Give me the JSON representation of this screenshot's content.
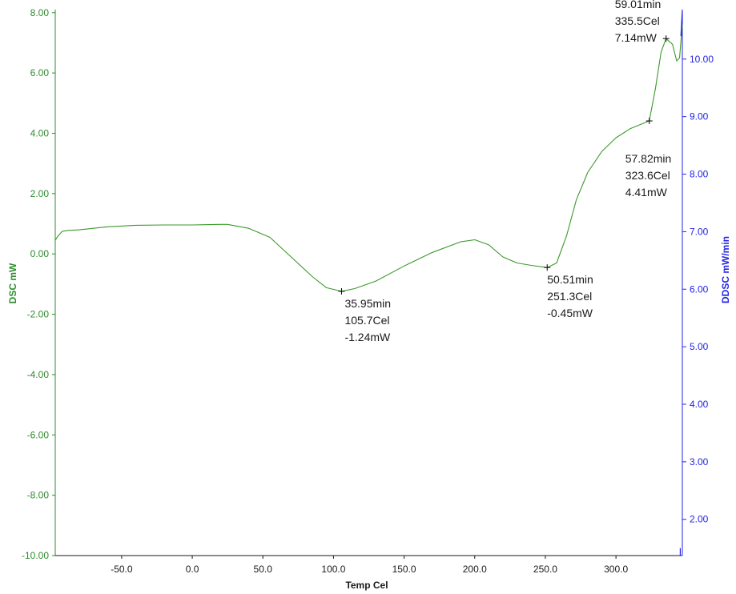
{
  "chart_data": {
    "type": "line",
    "colors": {
      "curve": "#3a9a2a",
      "left_axis": "#2e8b2e",
      "right_axis": "#2323e6",
      "bottom_axis": "#1a1a1a"
    },
    "xlabel": "Temp Cel",
    "ylabel": "DSC mW",
    "y2label": "DDSC mW/min",
    "xlim": [
      -97,
      347
    ],
    "ylim": [
      -10,
      8.1
    ],
    "y2lim": [
      1.37,
      10.86
    ],
    "x_ticks": [
      "-50.0",
      "0.0",
      "50.0",
      "100.0",
      "150.0",
      "200.0",
      "250.0",
      "300.0"
    ],
    "y_ticks": [
      "8.00",
      "6.00",
      "4.00",
      "2.00",
      "0.00",
      "-2.00",
      "-4.00",
      "-6.00",
      "-8.00",
      "-10.00"
    ],
    "y2_ticks": [
      "10.00",
      "9.00",
      "8.00",
      "7.00",
      "6.00",
      "5.00",
      "4.00",
      "3.00",
      "2.00"
    ],
    "grid": false,
    "series": [
      {
        "axis": "left",
        "x": [
          -97,
          -95,
          -92,
          -88,
          -80,
          -60,
          -40,
          -20,
          0,
          20,
          25,
          40,
          55,
          70,
          85,
          95,
          105.7,
          115,
          130,
          150,
          170,
          190,
          200,
          210,
          220,
          230,
          240,
          251.3,
          258,
          265,
          272,
          280,
          290,
          300,
          310,
          323.6,
          328,
          332,
          335.5,
          340,
          343,
          345,
          347
        ],
        "y": [
          0.45,
          0.6,
          0.75,
          0.78,
          0.8,
          0.9,
          0.95,
          0.96,
          0.96,
          0.98,
          0.98,
          0.85,
          0.55,
          -0.1,
          -0.75,
          -1.12,
          -1.24,
          -1.15,
          -0.9,
          -0.4,
          0.05,
          0.4,
          0.47,
          0.3,
          -0.1,
          -0.3,
          -0.38,
          -0.45,
          -0.3,
          0.6,
          1.8,
          2.7,
          3.4,
          3.85,
          4.15,
          4.41,
          5.5,
          6.7,
          7.14,
          6.95,
          6.4,
          6.5,
          7.6
        ]
      },
      {
        "axis": "right",
        "x": [
          345.5,
          345.5
        ],
        "y": [
          1.37,
          1.5
        ]
      },
      {
        "axis": "right",
        "x": [
          346,
          347
        ],
        "y": [
          10.4,
          10.86
        ]
      }
    ],
    "annotations": [
      {
        "x": 105.7,
        "y": -1.24,
        "lines": [
          "35.95min",
          "105.7Cel",
          "-1.24mW"
        ]
      },
      {
        "x": 251.3,
        "y": -0.45,
        "lines": [
          "50.51min",
          "251.3Cel",
          "-0.45mW"
        ]
      },
      {
        "x": 323.6,
        "y": 4.41,
        "lines": [
          "57.82min",
          "323.6Cel",
          "4.41mW"
        ]
      },
      {
        "x": 335.5,
        "y": 7.14,
        "lines": [
          "59.01min",
          "335.5Cel",
          "7.14mW"
        ]
      }
    ]
  }
}
